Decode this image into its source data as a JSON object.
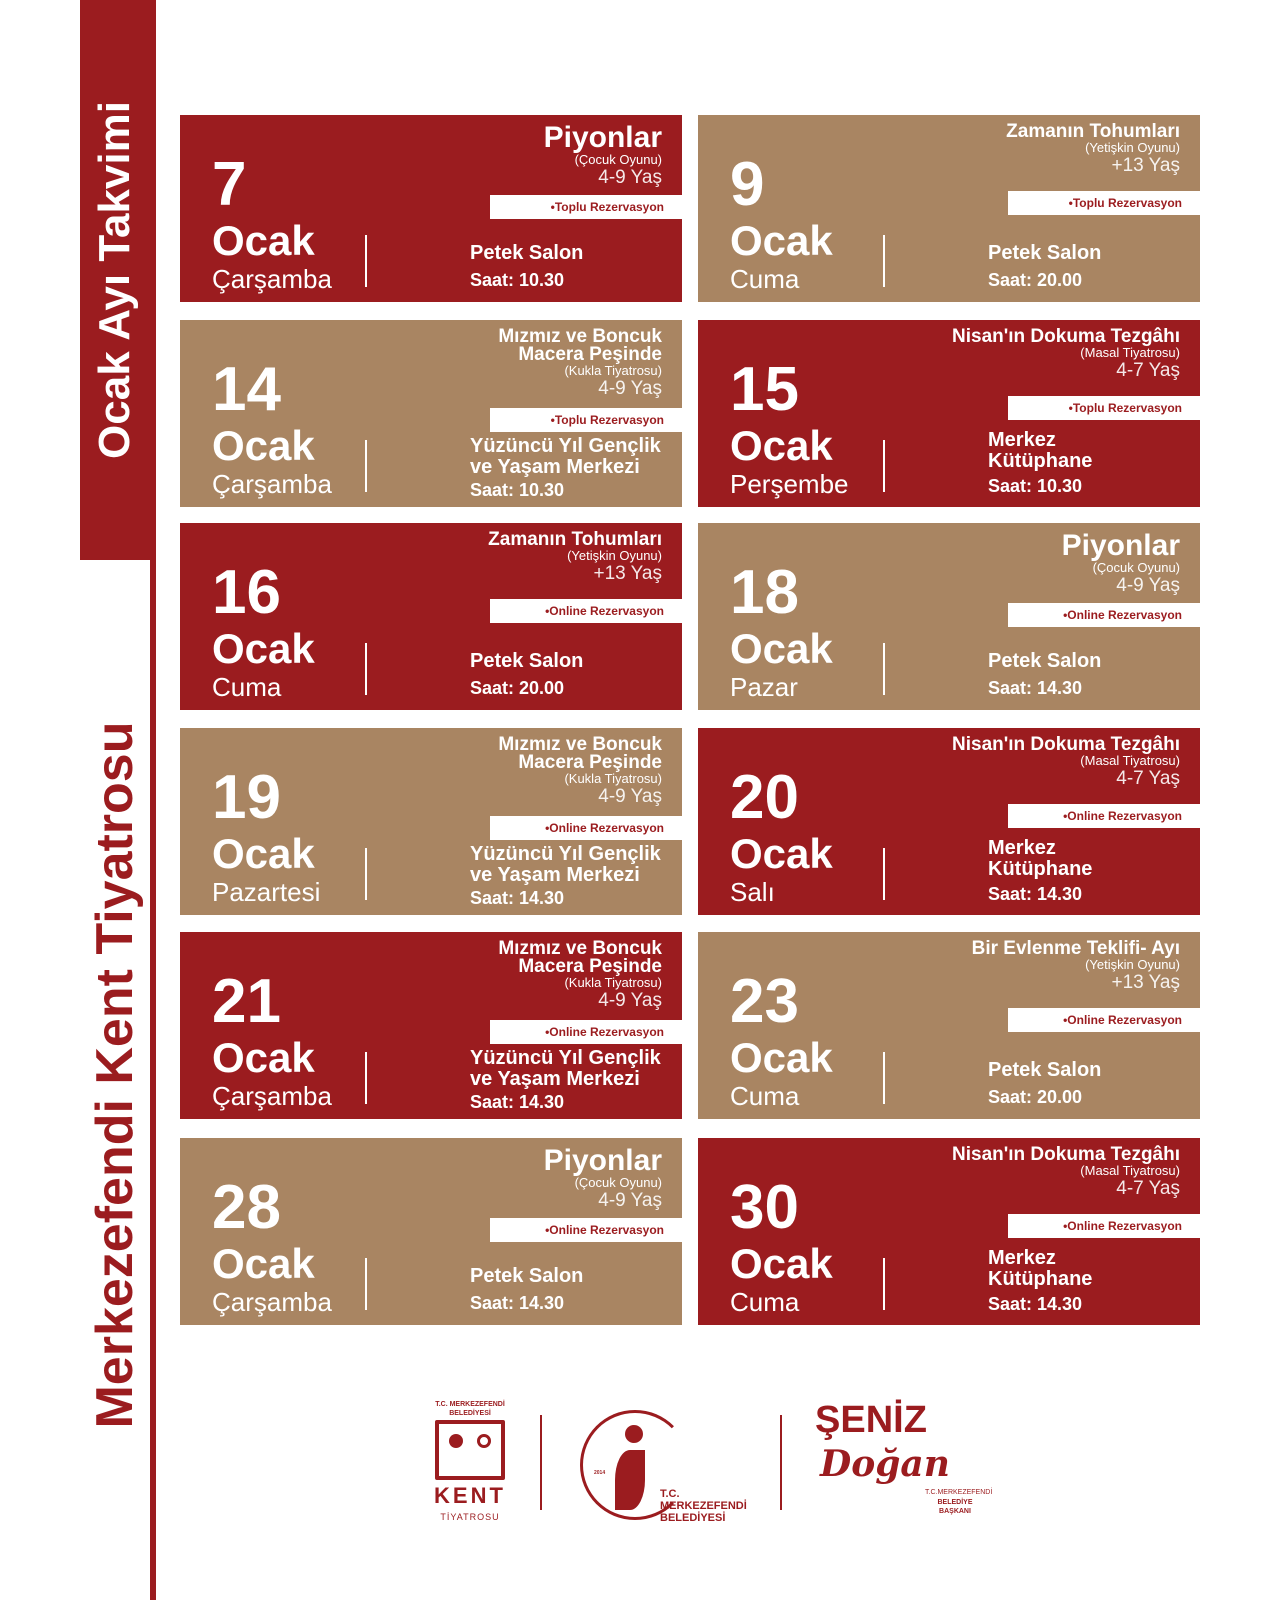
{
  "sidebar": {
    "calendar_title": "Ocak Ayı Takvimi",
    "theatre_name": "Merkezefendi Kent Tiyatrosu"
  },
  "colors": {
    "red": "#9b1c1f",
    "tan": "#a98562"
  },
  "events": [
    {
      "day": "7",
      "month": "Ocak",
      "weekday": "Çarşamba",
      "title": "Piyonlar",
      "subtitle": "(Çocuk Oyunu)",
      "age": "4-9 Yaş",
      "reservation": "•Toplu Rezervasyon",
      "venue": "Petek Salon",
      "time": "Saat: 10.30",
      "color": "red"
    },
    {
      "day": "9",
      "month": "Ocak",
      "weekday": "Cuma",
      "title": "Zamanın Tohumları",
      "subtitle": "(Yetişkin Oyunu)",
      "age": "+13 Yaş",
      "reservation": "•Toplu Rezervasyon",
      "venue": "Petek Salon",
      "time": "Saat: 20.00",
      "color": "tan"
    },
    {
      "day": "14",
      "month": "Ocak",
      "weekday": "Çarşamba",
      "title": "Mızmız ve Boncuk\nMacera Peşinde",
      "subtitle": "(Kukla Tiyatrosu)",
      "age": "4-9 Yaş",
      "reservation": "•Toplu Rezervasyon",
      "venue": "Yüzüncü Yıl Gençlik\nve Yaşam Merkezi",
      "time": "Saat: 10.30",
      "color": "tan"
    },
    {
      "day": "15",
      "month": "Ocak",
      "weekday": "Perşembe",
      "title": "Nisan'ın Dokuma Tezgâhı",
      "subtitle": "(Masal Tiyatrosu)",
      "age": "4-7 Yaş",
      "reservation": "•Toplu Rezervasyon",
      "venue": "Merkez\nKütüphane",
      "time": "Saat: 10.30",
      "color": "red"
    },
    {
      "day": "16",
      "month": "Ocak",
      "weekday": "Cuma",
      "title": "Zamanın Tohumları",
      "subtitle": "(Yetişkin Oyunu)",
      "age": "+13 Yaş",
      "reservation": "•Online Rezervasyon",
      "venue": "Petek Salon",
      "time": "Saat: 20.00",
      "color": "red"
    },
    {
      "day": "18",
      "month": "Ocak",
      "weekday": "Pazar",
      "title": "Piyonlar",
      "subtitle": "(Çocuk Oyunu)",
      "age": "4-9 Yaş",
      "reservation": "•Online Rezervasyon",
      "venue": "Petek Salon",
      "time": "Saat: 14.30",
      "color": "tan"
    },
    {
      "day": "19",
      "month": "Ocak",
      "weekday": "Pazartesi",
      "title": "Mızmız ve Boncuk\nMacera Peşinde",
      "subtitle": "(Kukla Tiyatrosu)",
      "age": "4-9 Yaş",
      "reservation": "•Online Rezervasyon",
      "venue": "Yüzüncü Yıl Gençlik\nve Yaşam Merkezi",
      "time": "Saat: 14.30",
      "color": "tan"
    },
    {
      "day": "20",
      "month": "Ocak",
      "weekday": "Salı",
      "title": "Nisan'ın Dokuma Tezgâhı",
      "subtitle": "(Masal Tiyatrosu)",
      "age": "4-7 Yaş",
      "reservation": "•Online Rezervasyon",
      "venue": "Merkez\nKütüphane",
      "time": "Saat: 14.30",
      "color": "red"
    },
    {
      "day": "21",
      "month": "Ocak",
      "weekday": "Çarşamba",
      "title": "Mızmız ve Boncuk\nMacera Peşinde",
      "subtitle": "(Kukla Tiyatrosu)",
      "age": "4-9 Yaş",
      "reservation": "•Online Rezervasyon",
      "venue": "Yüzüncü Yıl Gençlik\nve Yaşam Merkezi",
      "time": "Saat: 14.30",
      "color": "red"
    },
    {
      "day": "23",
      "month": "Ocak",
      "weekday": "Cuma",
      "title": "Bir Evlenme Teklifi- Ayı",
      "subtitle": "(Yetişkin Oyunu)",
      "age": "+13 Yaş",
      "reservation": "•Online Rezervasyon",
      "venue": "Petek Salon",
      "time": "Saat: 20.00",
      "color": "tan"
    },
    {
      "day": "28",
      "month": "Ocak",
      "weekday": "Çarşamba",
      "title": "Piyonlar",
      "subtitle": "(Çocuk Oyunu)",
      "age": "4-9 Yaş",
      "reservation": "•Online Rezervasyon",
      "venue": "Petek Salon",
      "time": "Saat: 14.30",
      "color": "tan"
    },
    {
      "day": "30",
      "month": "Ocak",
      "weekday": "Cuma",
      "title": "Nisan'ın Dokuma Tezgâhı",
      "subtitle": "(Masal Tiyatrosu)",
      "age": "4-7 Yaş",
      "reservation": "•Online Rezervasyon",
      "venue": "Merkez\nKütüphane",
      "time": "Saat: 14.30",
      "color": "red"
    }
  ],
  "logos": {
    "kent": {
      "top": "T.C. MERKEZEFENDİ BELEDİYESİ",
      "name": "KENT",
      "sub": "TİYATROSU"
    },
    "belediye": {
      "line1": "T.C.",
      "line2": "MERKEZEFENDİ",
      "line3": "BELEDİYESİ",
      "year": "2014"
    },
    "mayor": {
      "name1": "ŞENİZ",
      "name2": "Doğan",
      "role1": "T.C.MERKEZEFENDİ",
      "role2": "BELEDİYE BAŞKANI"
    }
  }
}
